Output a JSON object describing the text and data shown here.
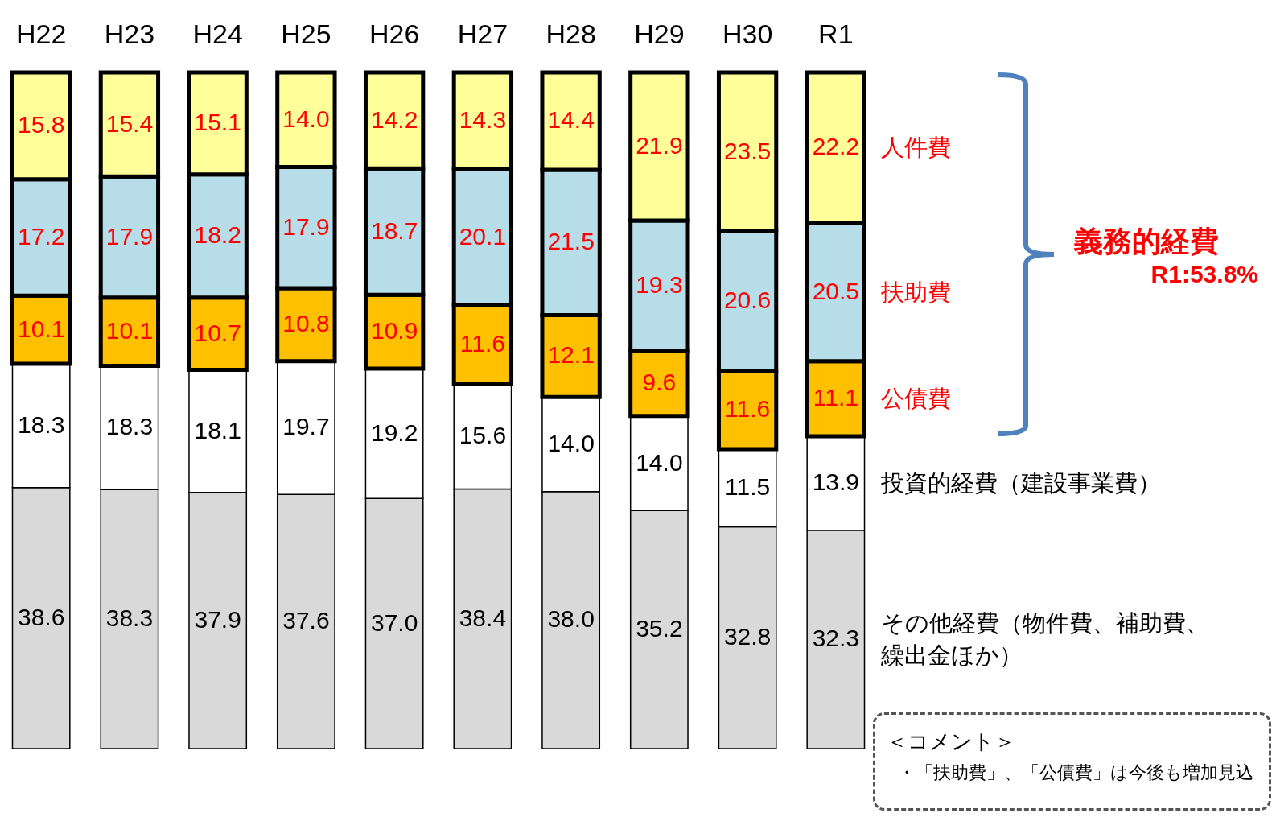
{
  "chart_data": {
    "type": "bar",
    "stacked": true,
    "legend": false,
    "categories": [
      "H22",
      "H23",
      "H24",
      "H25",
      "H26",
      "H27",
      "H28",
      "H29",
      "H30",
      "R1"
    ],
    "series": [
      {
        "name": "その他経費（物件費、補助費、繰出金ほか）",
        "color": "#d9d9d9",
        "values": [
          38.6,
          38.3,
          37.9,
          37.6,
          37.0,
          38.4,
          38.0,
          35.2,
          32.8,
          32.3
        ],
        "value_labels": [
          "38.6",
          "38.3",
          "37.9",
          "37.6",
          "37.0",
          "38.4",
          "38.0",
          "35.2",
          "32.8",
          "32.3"
        ]
      },
      {
        "name": "投資的経費（建設事業費）",
        "color": "#ffffff",
        "values": [
          18.3,
          18.3,
          18.1,
          19.7,
          19.2,
          15.6,
          14.0,
          14.0,
          11.5,
          13.9
        ],
        "value_labels": [
          "18.3",
          "18.3",
          "18.1",
          "19.7",
          "19.2",
          "15.6",
          "14.0",
          "14.0",
          "11.5",
          "13.9"
        ]
      },
      {
        "name": "公債費",
        "color": "#ffc000",
        "values": [
          10.1,
          10.1,
          10.7,
          10.8,
          10.9,
          11.6,
          12.1,
          9.6,
          11.6,
          11.1
        ],
        "value_labels": [
          "10.1",
          "10.1",
          "10.7",
          "10.8",
          "10.9",
          "11.6",
          "12.1",
          "9.6",
          "11.6",
          "11.1"
        ]
      },
      {
        "name": "扶助費",
        "color": "#b7dde8",
        "values": [
          17.2,
          17.9,
          18.2,
          17.9,
          18.7,
          20.1,
          21.5,
          19.3,
          20.6,
          20.5
        ],
        "value_labels": [
          "17.2",
          "17.9",
          "18.2",
          "17.9",
          "18.7",
          "20.1",
          "21.5",
          "19.3",
          "20.6",
          "20.5"
        ]
      },
      {
        "name": "人件費",
        "color": "#ffff99",
        "values": [
          15.8,
          15.4,
          15.1,
          14.0,
          14.2,
          14.3,
          14.4,
          21.9,
          23.5,
          22.2
        ],
        "value_labels": [
          "15.8",
          "15.4",
          "15.1",
          "14.0",
          "14.2",
          "14.3",
          "14.4",
          "21.9",
          "23.5",
          "22.2"
        ]
      }
    ],
    "annotations": [
      "義務的経費",
      "R1:53.8%",
      "＜コメント＞",
      "・「扶助費」、「公債費」は今後も増加見込"
    ]
  }
}
